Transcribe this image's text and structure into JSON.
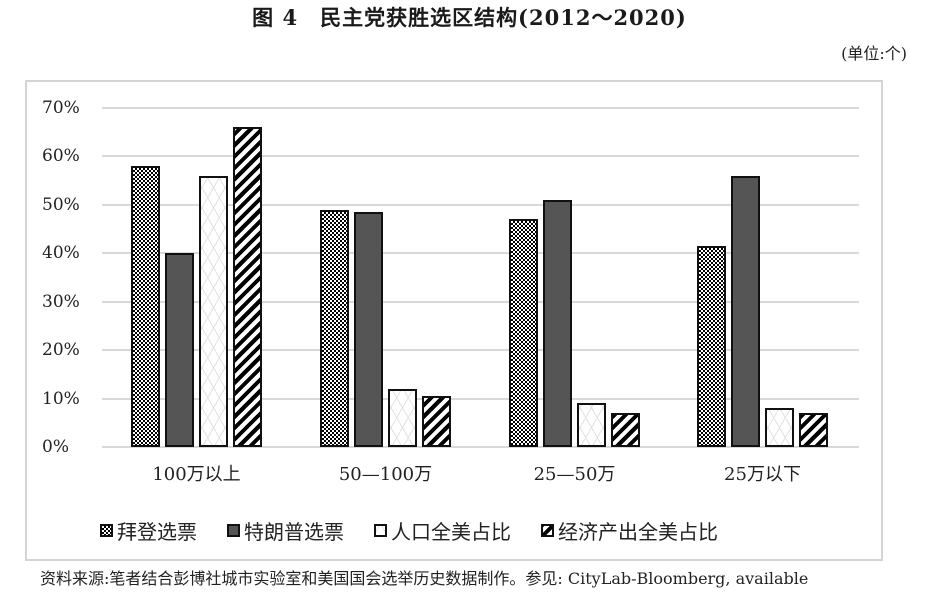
{
  "figure": {
    "title": "图 4　民主党获胜选区结构(2012～2020)",
    "unit": "(单位:个)",
    "source": "资料来源:笔者结合彭博社城市实验室和美国国会选举历史数据制作。参见: CityLab-Bloomberg, available"
  },
  "legend": [
    {
      "label": "拜登选票",
      "pattern": "checker"
    },
    {
      "label": "特朗普选票",
      "pattern": "solid-dark-gray"
    },
    {
      "label": "人口全美占比",
      "pattern": "light-lattice"
    },
    {
      "label": "经济产出全美占比",
      "pattern": "diagonal-stripes"
    }
  ],
  "y_ticks": [
    "70%",
    "60%",
    "50%",
    "40%",
    "30%",
    "20%",
    "10%",
    "0%"
  ],
  "chart_data": {
    "type": "bar",
    "title": "民主党获胜选区结构(2012～2020)",
    "xlabel": "",
    "ylabel": "",
    "ylim": [
      0,
      70
    ],
    "y_unit": "%",
    "grid": true,
    "legend_position": "bottom",
    "categories": [
      "100万以上",
      "50—100万",
      "25—50万",
      "25万以下"
    ],
    "series": [
      {
        "name": "拜登选票",
        "values": [
          58,
          49,
          47,
          41.5
        ]
      },
      {
        "name": "特朗普选票",
        "values": [
          40,
          48.5,
          51,
          56
        ]
      },
      {
        "name": "人口全美占比",
        "values": [
          56,
          12,
          9,
          8
        ]
      },
      {
        "name": "经济产出全美占比",
        "values": [
          66,
          10.5,
          7,
          7
        ]
      }
    ]
  },
  "colors": {
    "trump_bar": "#555555",
    "bar_border": "#111111",
    "gridline": "#d9d9d9",
    "frame": "#d4d4d4"
  }
}
